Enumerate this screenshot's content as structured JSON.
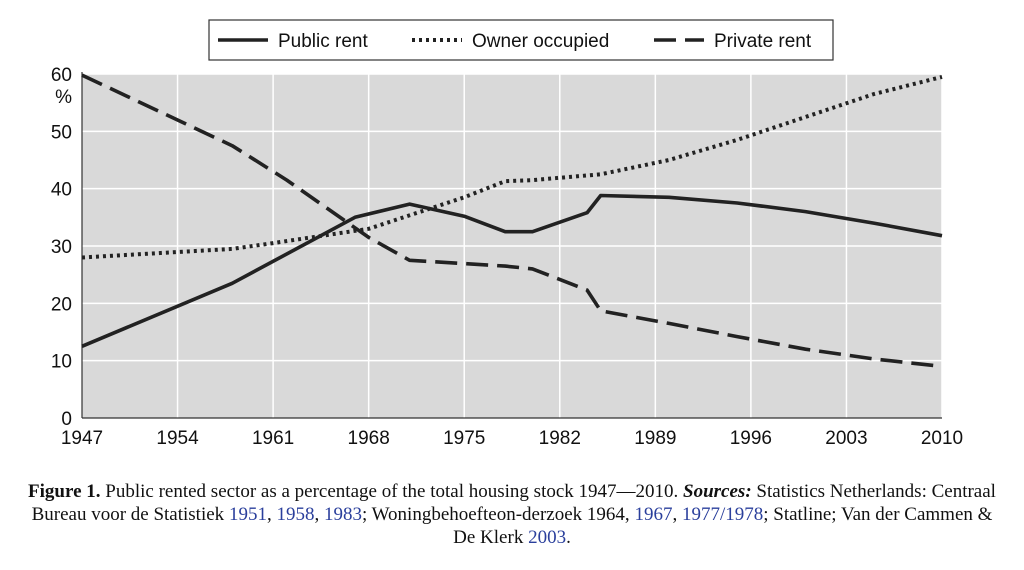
{
  "chart_data": {
    "type": "line",
    "title": "",
    "xlabel": "",
    "ylabel": "%",
    "xlim": [
      1947,
      2010
    ],
    "ylim": [
      0,
      60
    ],
    "x_ticks": [
      "1947",
      "1954",
      "1961",
      "1968",
      "1975",
      "1982",
      "1989",
      "1996",
      "2003",
      "2010"
    ],
    "y_ticks": [
      "0",
      "10",
      "20",
      "30",
      "40",
      "50",
      "60"
    ],
    "grid": true,
    "legend_position": "top-center",
    "series": [
      {
        "name": "Public rent",
        "style": "solid",
        "points": [
          [
            1947,
            12.5
          ],
          [
            1958,
            23.5
          ],
          [
            1967,
            35
          ],
          [
            1971,
            37.3
          ],
          [
            1975,
            35.2
          ],
          [
            1978,
            32.5
          ],
          [
            1980,
            32.5
          ],
          [
            1984,
            35.8
          ],
          [
            1985,
            38.8
          ],
          [
            1990,
            38.5
          ],
          [
            1995,
            37.5
          ],
          [
            2000,
            36
          ],
          [
            2005,
            34
          ],
          [
            2010,
            31.8
          ]
        ]
      },
      {
        "name": "Owner occupied",
        "style": "dotted",
        "points": [
          [
            1947,
            28
          ],
          [
            1958,
            29.5
          ],
          [
            1961,
            30.5
          ],
          [
            1968,
            33
          ],
          [
            1975,
            38.5
          ],
          [
            1978,
            41.3
          ],
          [
            1980,
            41.5
          ],
          [
            1985,
            42.5
          ],
          [
            1990,
            45
          ],
          [
            1995,
            48.5
          ],
          [
            2000,
            52.5
          ],
          [
            2005,
            56.5
          ],
          [
            2010,
            59.5
          ]
        ]
      },
      {
        "name": "Private rent",
        "style": "dashed",
        "points": [
          [
            1947,
            59.8
          ],
          [
            1958,
            47.5
          ],
          [
            1962,
            41.5
          ],
          [
            1968,
            31.5
          ],
          [
            1971,
            27.5
          ],
          [
            1978,
            26.5
          ],
          [
            1980,
            26
          ],
          [
            1984,
            22.3
          ],
          [
            1985,
            18.7
          ],
          [
            1990,
            16.5
          ],
          [
            1995,
            14.2
          ],
          [
            2000,
            12
          ],
          [
            2005,
            10.3
          ],
          [
            2010,
            9
          ]
        ]
      }
    ]
  },
  "caption": {
    "label": "Figure 1.",
    "text1": " Public rented sector as a percentage of the total housing stock 1947—2010. ",
    "sources_label": "Sources:",
    "text2": " Statistics Netherlands: Centraal Bureau voor de Statistiek ",
    "cite1": "1951",
    "sep1": ", ",
    "cite2": "1958",
    "sep2": ", ",
    "cite3": "1983",
    "text3": "; Woningbehoefteon-derzoek 1964, ",
    "cite4": "1967",
    "sep3": ", ",
    "cite5": "1977/1978",
    "text4": "; Statline; Van der Cammen & De Klerk ",
    "cite6": "2003",
    "end": "."
  },
  "colors": {
    "plot_background": "#d9d9d9",
    "gridline": "#ffffff",
    "series_line": "#222222",
    "citation_link": "#2a3f9c"
  }
}
